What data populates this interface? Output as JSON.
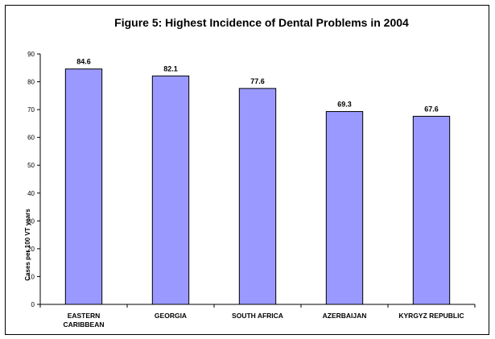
{
  "chart_data": {
    "type": "bar",
    "title": "Figure 5: Highest Incidence of Dental Problems in 2004",
    "ylabel": "Cases per 100 VT years",
    "xlabel": "",
    "categories": [
      [
        "EASTERN",
        "CARIBBEAN"
      ],
      [
        "GEORGIA"
      ],
      [
        "SOUTH AFRICA"
      ],
      [
        "AZERBAIJAN"
      ],
      [
        "KYRGYZ REPUBLIC"
      ]
    ],
    "values": [
      84.6,
      82.1,
      77.6,
      69.3,
      67.6
    ],
    "value_labels": [
      "84.6",
      "82.1",
      "77.6",
      "69.3",
      "67.6"
    ],
    "ylim": [
      0,
      90
    ],
    "yticks": [
      "0",
      "10",
      "20",
      "30",
      "40",
      "50",
      "60",
      "70",
      "80",
      "90"
    ],
    "ytick_values": [
      0,
      10,
      20,
      30,
      40,
      50,
      60,
      70,
      80,
      90
    ],
    "grid": false,
    "legend": "none",
    "colors": {
      "bar_fill": "#9999ff",
      "bar_stroke": "#000000",
      "axis": "#000000"
    }
  }
}
